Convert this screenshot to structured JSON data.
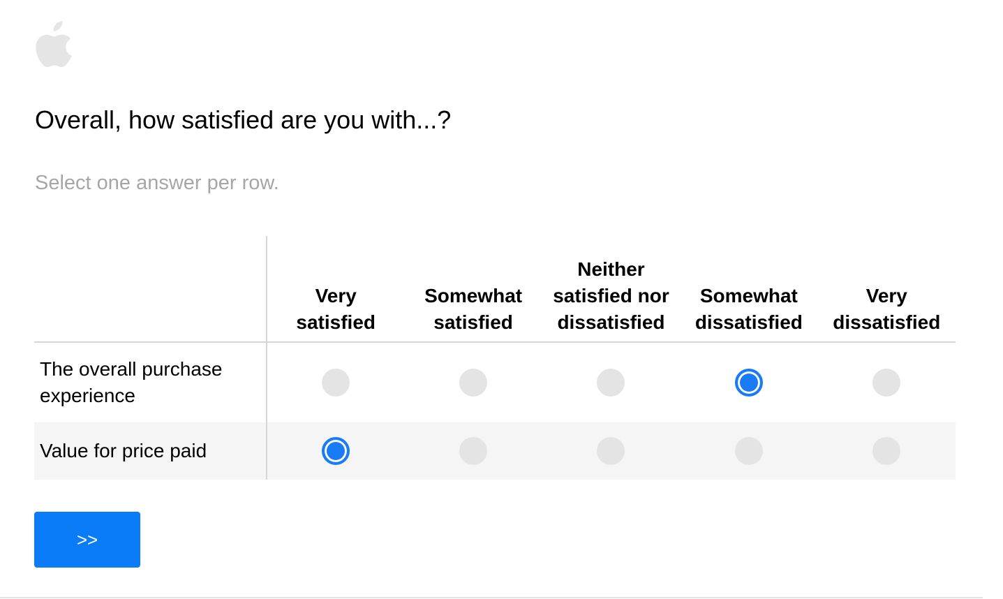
{
  "logo": {
    "icon": "apple-logo-icon",
    "color": "#e5e5e5"
  },
  "question": {
    "title": "Overall, how satisfied are you with...?",
    "instruction": "Select one answer per row."
  },
  "matrix": {
    "columns": [
      {
        "line1": "Very",
        "line2": "satisfied"
      },
      {
        "line1": "Somewhat",
        "line2": "satisfied"
      },
      {
        "line1": "Neither satisfied nor",
        "line2": "dissatisfied"
      },
      {
        "line1": "Somewhat",
        "line2": "dissatisfied"
      },
      {
        "line1": "Very",
        "line2": "dissatisfied"
      }
    ],
    "rows": [
      {
        "label": "The overall purchase experience",
        "selected_index": 3
      },
      {
        "label": "Value for price paid",
        "selected_index": 0
      }
    ]
  },
  "navigation": {
    "next_label": ">>"
  },
  "colors": {
    "accent": "#0a7cf7",
    "radio_unselected": "#e4e4e4",
    "instruction_text": "#a6a6a6",
    "alt_row_bg": "#f5f5f5"
  }
}
